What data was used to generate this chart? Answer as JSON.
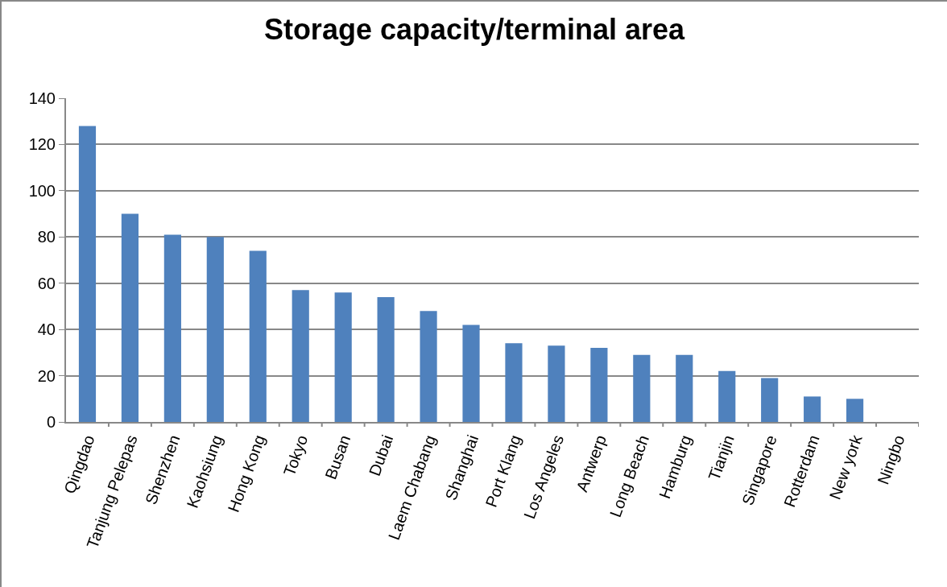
{
  "chart_data": {
    "type": "bar",
    "title": "Storage capacity/terminal area",
    "categories": [
      "Qingdao",
      "Tanjung Pelepas",
      "Shenzhen",
      "Kaohsiung",
      "Hong Kong",
      "Tokyo",
      "Busan",
      "Dubai",
      "Laem Chabang",
      "Shanghai",
      "Port Klang",
      "Los Angeles",
      "Antwerp",
      "Long Beach",
      "Hamburg",
      "Tianjin",
      "Singapore",
      "Rotterdam",
      "New york",
      "Ningbo"
    ],
    "values": [
      128,
      90,
      81,
      80,
      74,
      57,
      56,
      54,
      48,
      42,
      34,
      33,
      32,
      29,
      29,
      22,
      19,
      11,
      10,
      null
    ],
    "color": "#4f81bd",
    "ylim": [
      0,
      140
    ],
    "yticks": [
      0,
      20,
      40,
      60,
      80,
      100,
      120,
      140
    ],
    "grid": "y",
    "legend": false
  }
}
